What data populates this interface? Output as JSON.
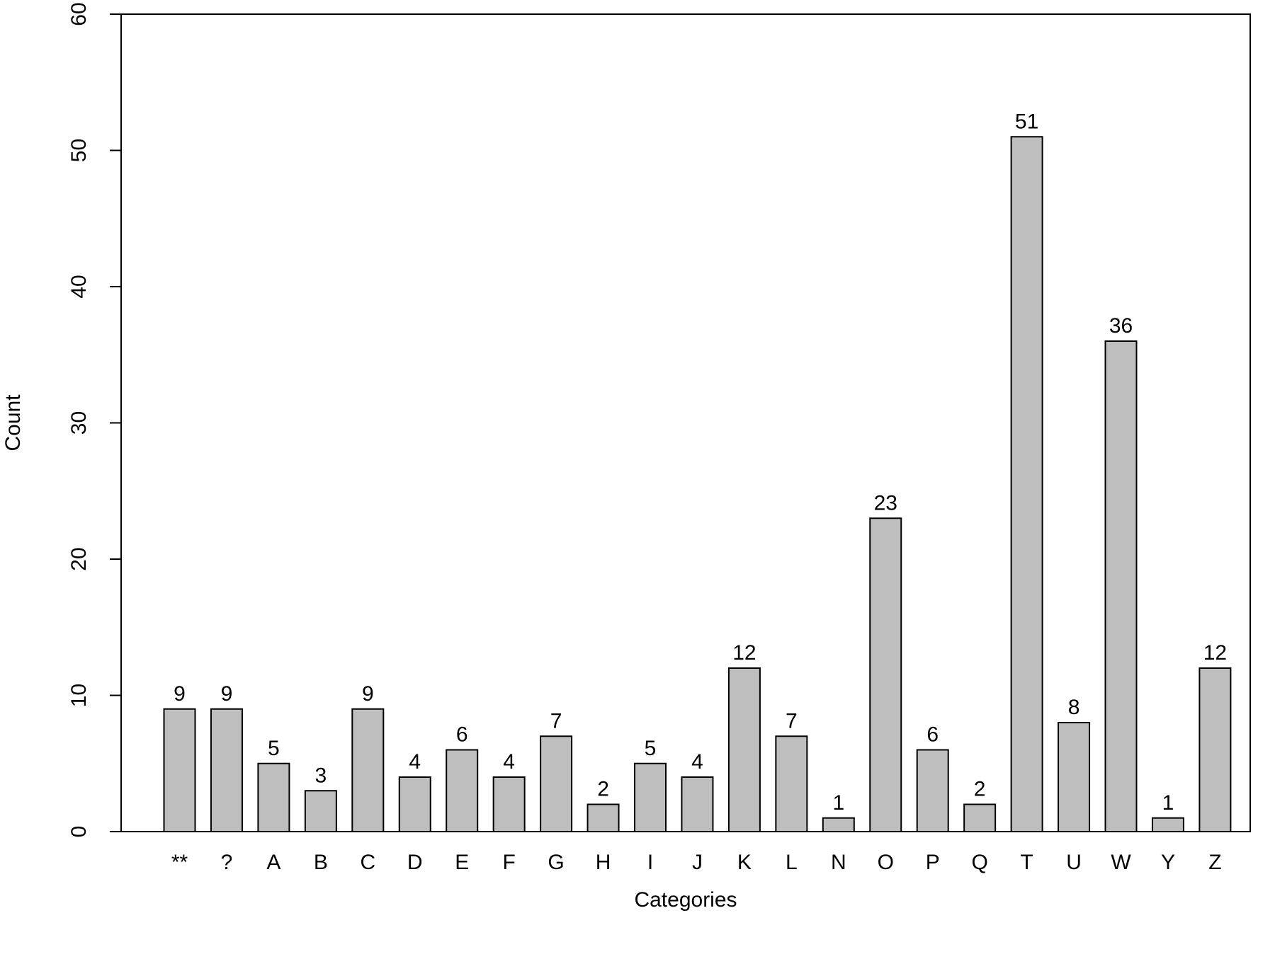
{
  "chart_data": {
    "type": "bar",
    "title": "",
    "xlabel": "Categories",
    "ylabel": "Count",
    "ylim": [
      0,
      60
    ],
    "yticks": [
      0,
      10,
      20,
      30,
      40,
      50,
      60
    ],
    "grid": false,
    "legend": "none",
    "categories": [
      "**",
      "?",
      "A",
      "B",
      "C",
      "D",
      "E",
      "F",
      "G",
      "H",
      "I",
      "J",
      "K",
      "L",
      "N",
      "O",
      "P",
      "Q",
      "T",
      "U",
      "W",
      "Y",
      "Z"
    ],
    "values": [
      9,
      9,
      5,
      3,
      9,
      4,
      6,
      4,
      7,
      2,
      5,
      4,
      12,
      7,
      1,
      23,
      6,
      2,
      51,
      8,
      36,
      1,
      12
    ],
    "data_labels": [
      "9",
      "9",
      "5",
      "3",
      "9",
      "4",
      "6",
      "4",
      "7",
      "2",
      "5",
      "4",
      "12",
      "7",
      "1",
      "23",
      "6",
      "2",
      "51",
      "8",
      "36",
      "1",
      "12"
    ],
    "colors": {
      "bar_fill": "#bebebe",
      "bar_stroke": "#000000",
      "axis": "#000000"
    }
  }
}
